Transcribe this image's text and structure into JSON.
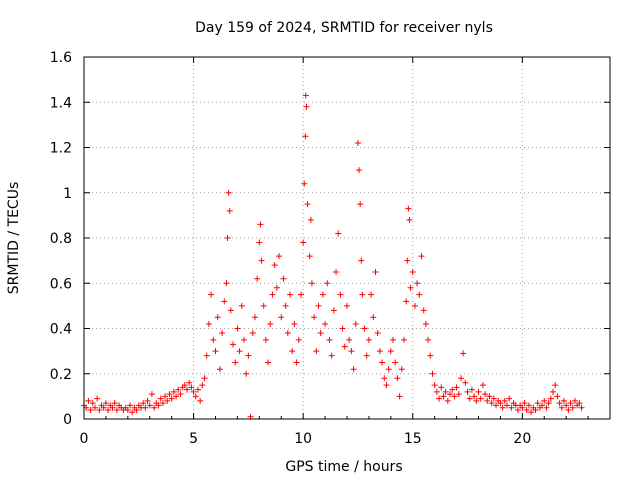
{
  "chart_data": {
    "type": "scatter",
    "title": "Day 159 of 2024, SRMTID for receiver nyls",
    "xlabel": "GPS time / hours",
    "ylabel": "SRMTID / TECUs",
    "xlim": [
      0,
      24
    ],
    "ylim": [
      0,
      1.6
    ],
    "x_ticks": [
      0,
      5,
      10,
      15,
      20
    ],
    "x_tick_labels": [
      "0",
      "5",
      "10",
      "15",
      "20"
    ],
    "y_ticks": [
      0,
      0.2,
      0.4,
      0.6,
      0.8,
      1.0,
      1.2,
      1.4,
      1.6
    ],
    "y_tick_labels": [
      "0",
      "0.2",
      "0.4",
      "0.6",
      "0.8",
      "1",
      "1.2",
      "1.4",
      "1.6"
    ],
    "grid": true,
    "marker": "+",
    "series_color": "#ff0000",
    "series": [
      {
        "name": "SRMTID",
        "points": [
          [
            0.0,
            0.06
          ],
          [
            0.1,
            0.05
          ],
          [
            0.2,
            0.08
          ],
          [
            0.3,
            0.04
          ],
          [
            0.4,
            0.07
          ],
          [
            0.5,
            0.05
          ],
          [
            0.6,
            0.09
          ],
          [
            0.7,
            0.04
          ],
          [
            0.8,
            0.06
          ],
          [
            0.9,
            0.05
          ],
          [
            1.0,
            0.07
          ],
          [
            1.1,
            0.04
          ],
          [
            1.2,
            0.06
          ],
          [
            1.3,
            0.05
          ],
          [
            1.4,
            0.07
          ],
          [
            1.5,
            0.04
          ],
          [
            1.6,
            0.06
          ],
          [
            1.7,
            0.05
          ],
          [
            1.8,
            0.04
          ],
          [
            1.9,
            0.05
          ],
          [
            2.0,
            0.04
          ],
          [
            2.1,
            0.06
          ],
          [
            2.2,
            0.03
          ],
          [
            2.3,
            0.05
          ],
          [
            2.4,
            0.04
          ],
          [
            2.5,
            0.06
          ],
          [
            2.6,
            0.05
          ],
          [
            2.7,
            0.07
          ],
          [
            2.8,
            0.05
          ],
          [
            2.9,
            0.08
          ],
          [
            3.0,
            0.06
          ],
          [
            3.1,
            0.11
          ],
          [
            3.2,
            0.05
          ],
          [
            3.3,
            0.07
          ],
          [
            3.4,
            0.06
          ],
          [
            3.5,
            0.09
          ],
          [
            3.6,
            0.07
          ],
          [
            3.7,
            0.1
          ],
          [
            3.8,
            0.08
          ],
          [
            3.9,
            0.11
          ],
          [
            4.0,
            0.09
          ],
          [
            4.1,
            0.12
          ],
          [
            4.2,
            0.1
          ],
          [
            4.3,
            0.13
          ],
          [
            4.4,
            0.11
          ],
          [
            4.5,
            0.14
          ],
          [
            4.6,
            0.15
          ],
          [
            4.7,
            0.13
          ],
          [
            4.8,
            0.16
          ],
          [
            4.9,
            0.14
          ],
          [
            5.0,
            0.12
          ],
          [
            5.1,
            0.1
          ],
          [
            5.2,
            0.13
          ],
          [
            5.3,
            0.08
          ],
          [
            5.4,
            0.15
          ],
          [
            5.5,
            0.18
          ],
          [
            5.6,
            0.28
          ],
          [
            5.7,
            0.42
          ],
          [
            5.8,
            0.55
          ],
          [
            5.9,
            0.35
          ],
          [
            6.0,
            0.3
          ],
          [
            6.1,
            0.45
          ],
          [
            6.2,
            0.22
          ],
          [
            6.3,
            0.38
          ],
          [
            6.4,
            0.52
          ],
          [
            6.5,
            0.6
          ],
          [
            6.55,
            0.8
          ],
          [
            6.6,
            1.0
          ],
          [
            6.65,
            0.92
          ],
          [
            6.7,
            0.48
          ],
          [
            6.8,
            0.33
          ],
          [
            6.9,
            0.25
          ],
          [
            7.0,
            0.4
          ],
          [
            7.1,
            0.3
          ],
          [
            7.2,
            0.5
          ],
          [
            7.3,
            0.35
          ],
          [
            7.4,
            0.2
          ],
          [
            7.5,
            0.28
          ],
          [
            7.6,
            0.01
          ],
          [
            7.7,
            0.38
          ],
          [
            7.8,
            0.45
          ],
          [
            7.9,
            0.62
          ],
          [
            8.0,
            0.78
          ],
          [
            8.05,
            0.86
          ],
          [
            8.1,
            0.7
          ],
          [
            8.2,
            0.5
          ],
          [
            8.3,
            0.35
          ],
          [
            8.4,
            0.25
          ],
          [
            8.5,
            0.42
          ],
          [
            8.6,
            0.55
          ],
          [
            8.7,
            0.68
          ],
          [
            8.8,
            0.58
          ],
          [
            8.9,
            0.72
          ],
          [
            9.0,
            0.45
          ],
          [
            9.1,
            0.62
          ],
          [
            9.2,
            0.5
          ],
          [
            9.3,
            0.38
          ],
          [
            9.4,
            0.55
          ],
          [
            9.5,
            0.3
          ],
          [
            9.6,
            0.42
          ],
          [
            9.7,
            0.25
          ],
          [
            9.8,
            0.35
          ],
          [
            9.9,
            0.55
          ],
          [
            10.0,
            0.78
          ],
          [
            10.05,
            1.04
          ],
          [
            10.1,
            1.25
          ],
          [
            10.12,
            1.43
          ],
          [
            10.15,
            1.38
          ],
          [
            10.2,
            0.95
          ],
          [
            10.3,
            0.72
          ],
          [
            10.35,
            0.88
          ],
          [
            10.4,
            0.6
          ],
          [
            10.5,
            0.45
          ],
          [
            10.6,
            0.3
          ],
          [
            10.7,
            0.5
          ],
          [
            10.8,
            0.38
          ],
          [
            10.9,
            0.55
          ],
          [
            11.0,
            0.42
          ],
          [
            11.1,
            0.6
          ],
          [
            11.2,
            0.35
          ],
          [
            11.3,
            0.28
          ],
          [
            11.4,
            0.48
          ],
          [
            11.5,
            0.65
          ],
          [
            11.6,
            0.82
          ],
          [
            11.7,
            0.55
          ],
          [
            11.8,
            0.4
          ],
          [
            11.9,
            0.32
          ],
          [
            12.0,
            0.5
          ],
          [
            12.1,
            0.35
          ],
          [
            12.2,
            0.3
          ],
          [
            12.3,
            0.22
          ],
          [
            12.4,
            0.42
          ],
          [
            12.5,
            1.22
          ],
          [
            12.55,
            1.1
          ],
          [
            12.6,
            0.95
          ],
          [
            12.65,
            0.7
          ],
          [
            12.7,
            0.55
          ],
          [
            12.8,
            0.4
          ],
          [
            12.9,
            0.28
          ],
          [
            13.0,
            0.35
          ],
          [
            13.1,
            0.55
          ],
          [
            13.2,
            0.45
          ],
          [
            13.3,
            0.65
          ],
          [
            13.4,
            0.38
          ],
          [
            13.5,
            0.3
          ],
          [
            13.6,
            0.25
          ],
          [
            13.7,
            0.18
          ],
          [
            13.8,
            0.15
          ],
          [
            13.9,
            0.22
          ],
          [
            14.0,
            0.3
          ],
          [
            14.1,
            0.35
          ],
          [
            14.2,
            0.25
          ],
          [
            14.3,
            0.18
          ],
          [
            14.4,
            0.1
          ],
          [
            14.5,
            0.22
          ],
          [
            14.6,
            0.35
          ],
          [
            14.7,
            0.52
          ],
          [
            14.75,
            0.7
          ],
          [
            14.8,
            0.93
          ],
          [
            14.85,
            0.88
          ],
          [
            14.9,
            0.58
          ],
          [
            15.0,
            0.65
          ],
          [
            15.1,
            0.5
          ],
          [
            15.2,
            0.6
          ],
          [
            15.3,
            0.55
          ],
          [
            15.4,
            0.72
          ],
          [
            15.5,
            0.48
          ],
          [
            15.6,
            0.42
          ],
          [
            15.7,
            0.35
          ],
          [
            15.8,
            0.28
          ],
          [
            15.9,
            0.2
          ],
          [
            16.0,
            0.15
          ],
          [
            16.1,
            0.12
          ],
          [
            16.2,
            0.09
          ],
          [
            16.3,
            0.14
          ],
          [
            16.4,
            0.1
          ],
          [
            16.5,
            0.12
          ],
          [
            16.6,
            0.08
          ],
          [
            16.7,
            0.11
          ],
          [
            16.8,
            0.13
          ],
          [
            16.9,
            0.1
          ],
          [
            17.0,
            0.14
          ],
          [
            17.1,
            0.11
          ],
          [
            17.2,
            0.18
          ],
          [
            17.3,
            0.29
          ],
          [
            17.4,
            0.16
          ],
          [
            17.5,
            0.12
          ],
          [
            17.6,
            0.09
          ],
          [
            17.7,
            0.13
          ],
          [
            17.8,
            0.1
          ],
          [
            17.9,
            0.08
          ],
          [
            18.0,
            0.12
          ],
          [
            18.1,
            0.09
          ],
          [
            18.2,
            0.15
          ],
          [
            18.3,
            0.11
          ],
          [
            18.4,
            0.08
          ],
          [
            18.5,
            0.1
          ],
          [
            18.6,
            0.07
          ],
          [
            18.7,
            0.09
          ],
          [
            18.8,
            0.06
          ],
          [
            18.9,
            0.08
          ],
          [
            19.0,
            0.07
          ],
          [
            19.1,
            0.05
          ],
          [
            19.2,
            0.08
          ],
          [
            19.3,
            0.06
          ],
          [
            19.4,
            0.09
          ],
          [
            19.5,
            0.05
          ],
          [
            19.6,
            0.07
          ],
          [
            19.7,
            0.06
          ],
          [
            19.8,
            0.04
          ],
          [
            19.9,
            0.06
          ],
          [
            20.0,
            0.05
          ],
          [
            20.1,
            0.07
          ],
          [
            20.2,
            0.04
          ],
          [
            20.3,
            0.06
          ],
          [
            20.4,
            0.03
          ],
          [
            20.5,
            0.05
          ],
          [
            20.6,
            0.04
          ],
          [
            20.7,
            0.07
          ],
          [
            20.8,
            0.05
          ],
          [
            20.9,
            0.06
          ],
          [
            21.0,
            0.08
          ],
          [
            21.1,
            0.05
          ],
          [
            21.2,
            0.07
          ],
          [
            21.3,
            0.09
          ],
          [
            21.4,
            0.12
          ],
          [
            21.5,
            0.15
          ],
          [
            21.6,
            0.1
          ],
          [
            21.7,
            0.07
          ],
          [
            21.8,
            0.05
          ],
          [
            21.9,
            0.08
          ],
          [
            22.0,
            0.06
          ],
          [
            22.1,
            0.04
          ],
          [
            22.2,
            0.07
          ],
          [
            22.3,
            0.05
          ],
          [
            22.4,
            0.08
          ],
          [
            22.5,
            0.06
          ],
          [
            22.6,
            0.07
          ],
          [
            22.7,
            0.05
          ]
        ]
      }
    ]
  }
}
